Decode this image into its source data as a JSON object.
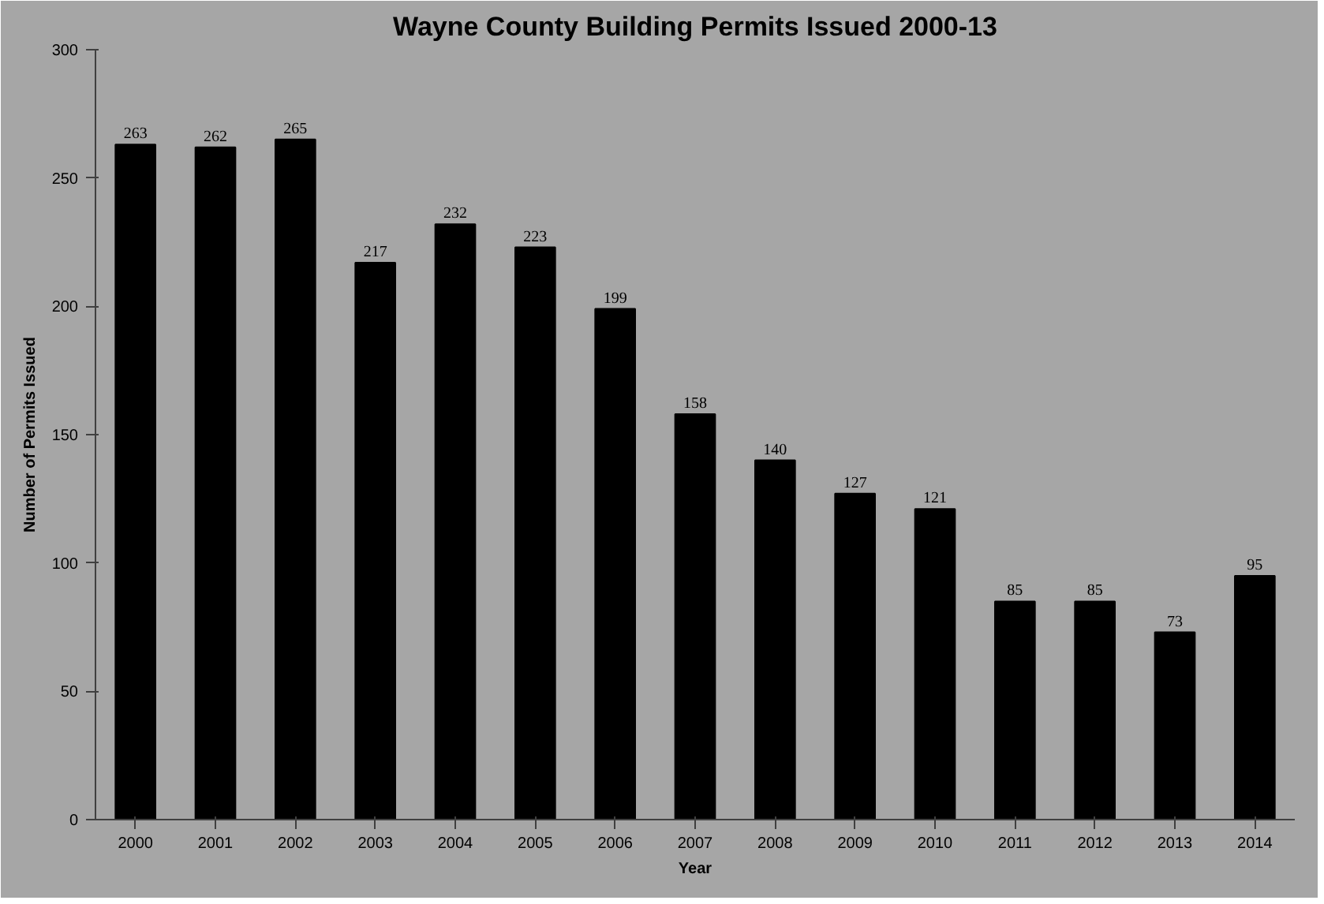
{
  "chart_data": {
    "type": "bar",
    "title": "Wayne County Building Permits Issued 2000-13",
    "xlabel": "Year",
    "ylabel": "Number of Permits Issued",
    "categories": [
      "2000",
      "2001",
      "2002",
      "2003",
      "2004",
      "2005",
      "2006",
      "2007",
      "2008",
      "2009",
      "2010",
      "2011",
      "2012",
      "2013",
      "2014"
    ],
    "values": [
      263,
      262,
      265,
      217,
      232,
      223,
      199,
      158,
      140,
      127,
      121,
      85,
      85,
      73,
      95
    ],
    "color": "#000000",
    "ylim": [
      0,
      300
    ],
    "yticks": [
      0,
      50,
      100,
      150,
      200,
      250,
      300
    ],
    "grid": false,
    "data_labels": true
  }
}
